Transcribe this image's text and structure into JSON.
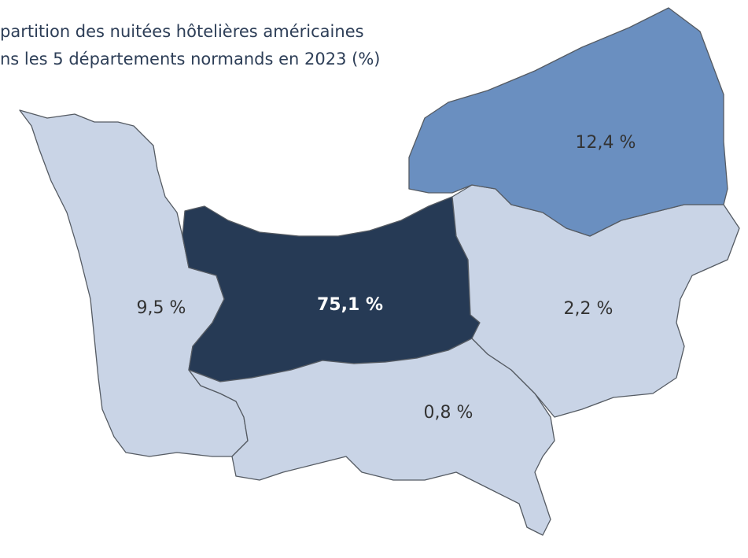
{
  "chart_data": {
    "type": "choropleth",
    "title_lines": [
      "partition des nuitées hôtelières américaines",
      "ns les 5 départements normands en 2023 (%)"
    ],
    "regions": [
      {
        "value": 9.5,
        "value_label": "9,5 %",
        "color": "#c9d4e6",
        "label_color": "#333333"
      },
      {
        "value": 75.1,
        "value_label": "75,1 %",
        "color": "#263a55",
        "label_color": "#ffffff"
      },
      {
        "value": 0.8,
        "value_label": "0,8 %",
        "color": "#c9d4e6",
        "label_color": "#333333"
      },
      {
        "value": 2.2,
        "value_label": "2,2 %",
        "color": "#c9d4e6",
        "label_color": "#333333"
      },
      {
        "value": 12.4,
        "value_label": "12,4 %",
        "color": "#6a8fc0",
        "label_color": "#333333"
      }
    ]
  }
}
